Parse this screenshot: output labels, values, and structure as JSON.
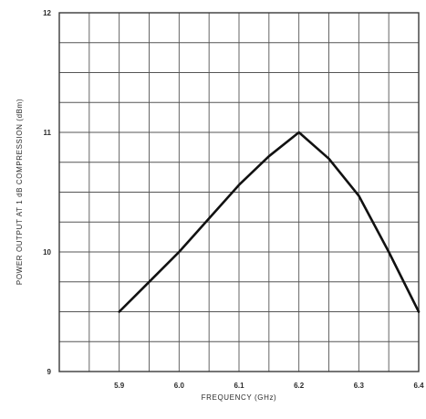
{
  "chart_data": {
    "type": "line",
    "xlabel": "FREQUENCY (GHz)",
    "ylabel": "POWER OUTPUT AT 1 dB COMPRESSION (dBm)",
    "xlim": [
      5.8,
      6.4
    ],
    "ylim": [
      9,
      12
    ],
    "x_ticks": [
      5.9,
      6.0,
      6.1,
      6.2,
      6.3,
      6.4
    ],
    "x_tick_labels": [
      "5.9",
      "6.0",
      "6.1",
      "6.2",
      "6.3",
      "6.4"
    ],
    "y_ticks": [
      9,
      10,
      11,
      12
    ],
    "y_tick_labels": [
      "9",
      "10",
      "11",
      "12"
    ],
    "x_grid_step": 0.05,
    "y_grid_step": 0.25,
    "grid": true,
    "series": [
      {
        "x": [
          5.9,
          5.95,
          6.0,
          6.05,
          6.1,
          6.15,
          6.2,
          6.25,
          6.3,
          6.35,
          6.4
        ],
        "y": [
          9.5,
          9.75,
          10.0,
          10.28,
          10.56,
          10.8,
          11.0,
          10.78,
          10.47,
          10.0,
          9.5
        ]
      }
    ]
  }
}
